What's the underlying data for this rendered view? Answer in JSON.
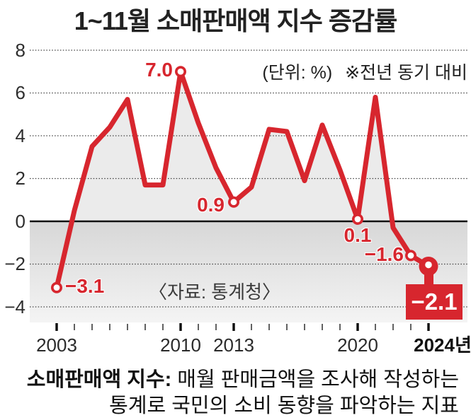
{
  "title": "1~11월 소매판매액 지수 증감률",
  "annotation": {
    "unit": "(단위: %)",
    "note": "※전년 동기 대비"
  },
  "source": "〈자료: 통계청〉",
  "y_axis_labels": [
    "8",
    "6",
    "4",
    "2",
    "0",
    "−2",
    "−4"
  ],
  "x_axis_labels": [
    "2003",
    "2010",
    "2013",
    "2020",
    "2024년"
  ],
  "data_labels": {
    "p2003": "−3.1",
    "p2010": "7.0",
    "p2013": "0.9",
    "p2020": "0.1",
    "p2023": "−1.6",
    "p2024": "−2.1"
  },
  "footer": {
    "lead": "소매판매액 지수:",
    "line1": " 매월 판매금액을 조사해 작성하는",
    "line2": "통계로 국민의 소비 동향을 파악하는 지표"
  },
  "chart_data": {
    "type": "line",
    "title": "1~11월 소매판매액 지수 증감률",
    "unit": "%",
    "note": "전년 동기 대비",
    "x": [
      2003,
      2004,
      2005,
      2006,
      2007,
      2008,
      2009,
      2010,
      2011,
      2012,
      2013,
      2014,
      2015,
      2016,
      2017,
      2018,
      2019,
      2020,
      2021,
      2022,
      2023,
      2024
    ],
    "values": [
      -3.1,
      0.5,
      3.5,
      4.4,
      5.7,
      1.7,
      1.7,
      7.0,
      4.6,
      2.5,
      0.9,
      1.6,
      4.3,
      4.2,
      1.9,
      4.5,
      2.4,
      0.1,
      5.8,
      -0.3,
      -1.6,
      -2.1
    ],
    "labeled_points": [
      {
        "year": 2003,
        "value": -3.1
      },
      {
        "year": 2010,
        "value": 7.0
      },
      {
        "year": 2013,
        "value": 0.9
      },
      {
        "year": 2020,
        "value": 0.1
      },
      {
        "year": 2023,
        "value": -1.6
      },
      {
        "year": 2024,
        "value": -2.1
      }
    ],
    "marker_years": [
      2003,
      2010,
      2013,
      2020,
      2023
    ],
    "big_marker_year": 2024,
    "major_tick_years": [
      2003,
      2010,
      2013,
      2020,
      2024
    ],
    "y_ticks": [
      8,
      6,
      4,
      2,
      0,
      -2,
      -4
    ],
    "ylim": [
      -4,
      8
    ],
    "grid": "dotted",
    "zero_line": "solid",
    "legend_position": "none",
    "colors": {
      "line": "#d7262e",
      "area": "#ebebeb",
      "band_top": "#d7d7d7",
      "band_bottom": "#f4f4f4",
      "grid": "#404040",
      "zero_line": "#111111",
      "tick_minor": "#3a3a3a",
      "tick_major": "#0a0a0a",
      "badge_bg": "#d7262e",
      "badge_text": "#ffffff"
    }
  }
}
